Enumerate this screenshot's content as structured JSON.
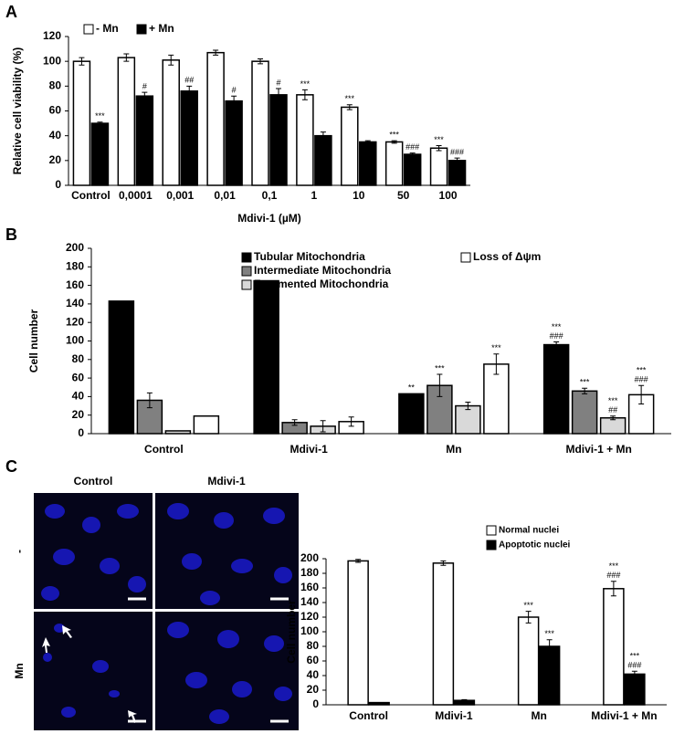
{
  "panels": [
    "A",
    "B",
    "C"
  ],
  "micrographs": {
    "columns": [
      "Control",
      "Mdivi-1"
    ],
    "rows": [
      "-",
      "Mn"
    ]
  },
  "chart_data": [
    {
      "type": "bar",
      "y_label": "Relative cell viability (%)",
      "x_label": "Mdivi-1 (µM)",
      "categories": [
        "Control",
        "0,0001",
        "0,001",
        "0,01",
        "0,1",
        "1",
        "10",
        "50",
        "100"
      ],
      "ylim": [
        0,
        120
      ],
      "yticks": [
        0,
        20,
        40,
        60,
        80,
        100,
        120
      ],
      "series": [
        {
          "name": "- Mn",
          "color": "#ffffff",
          "values": [
            100,
            103,
            101,
            107,
            100,
            73,
            63,
            35,
            30
          ],
          "errors": [
            3,
            3,
            4,
            2,
            2,
            4,
            2,
            1,
            2
          ],
          "annotations": [
            null,
            null,
            null,
            null,
            null,
            [
              "***"
            ],
            [
              "***"
            ],
            [
              "***"
            ],
            [
              "***"
            ]
          ]
        },
        {
          "name": "+ Mn",
          "color": "#000000",
          "values": [
            50,
            72,
            76,
            68,
            73,
            40,
            35,
            25,
            20
          ],
          "errors": [
            1,
            3,
            4,
            4,
            5,
            3,
            1,
            1,
            2
          ],
          "annotations": [
            [
              "***"
            ],
            [
              "#"
            ],
            [
              "##"
            ],
            [
              "#"
            ],
            [
              "#"
            ],
            null,
            null,
            [
              "###"
            ],
            [
              "###"
            ]
          ]
        }
      ]
    },
    {
      "type": "bar",
      "y_label": "Cell number",
      "categories": [
        "Control",
        "Mdivi-1",
        "Mn",
        "Mdivi-1 + Mn"
      ],
      "ylim": [
        0,
        200
      ],
      "yticks": [
        0,
        20,
        40,
        60,
        80,
        100,
        120,
        140,
        160,
        180,
        200
      ],
      "series": [
        {
          "name": "Tubular Mitochondria",
          "color": "#000000",
          "values": [
            143,
            165,
            43,
            96
          ],
          "errors": [
            null,
            null,
            null,
            3
          ],
          "annotations": [
            null,
            null,
            [
              "**"
            ],
            [
              "***",
              "###"
            ]
          ]
        },
        {
          "name": "Intermediate Mitochondria",
          "color": "#808080",
          "values": [
            36,
            12,
            52,
            46
          ],
          "errors": [
            8,
            3,
            12,
            3
          ],
          "annotations": [
            null,
            null,
            [
              "***"
            ],
            [
              "***"
            ]
          ]
        },
        {
          "name": "Fragmented Mitochondria",
          "color": "#d9d9d9",
          "values": [
            3,
            8,
            30,
            17
          ],
          "errors": [
            null,
            6,
            4,
            2
          ],
          "annotations": [
            null,
            null,
            null,
            [
              "***",
              "##"
            ]
          ]
        },
        {
          "name": "Loss of Δψm",
          "color": "#ffffff",
          "values": [
            19,
            13,
            75,
            42
          ],
          "errors": [
            null,
            5,
            11,
            10
          ],
          "annotations": [
            null,
            null,
            [
              "***"
            ],
            [
              "***",
              "###"
            ]
          ]
        }
      ]
    },
    {
      "type": "bar",
      "y_label": "Cell number",
      "categories": [
        "Control",
        "Mdivi-1",
        "Mn",
        "Mdivi-1 + Mn"
      ],
      "ylim": [
        0,
        200
      ],
      "yticks": [
        0,
        20,
        40,
        60,
        80,
        100,
        120,
        140,
        160,
        180,
        200
      ],
      "series": [
        {
          "name": "Normal nuclei",
          "color": "#ffffff",
          "values": [
            197,
            194,
            120,
            159
          ],
          "errors": [
            2,
            3,
            8,
            10
          ],
          "annotations": [
            null,
            null,
            [
              "***"
            ],
            [
              "***",
              "###"
            ]
          ]
        },
        {
          "name": "Apoptotic nuclei",
          "color": "#000000",
          "values": [
            3,
            6,
            80,
            42
          ],
          "errors": [
            null,
            1,
            9,
            4
          ],
          "annotations": [
            null,
            null,
            [
              "***"
            ],
            [
              "***",
              "###"
            ]
          ]
        }
      ]
    }
  ]
}
